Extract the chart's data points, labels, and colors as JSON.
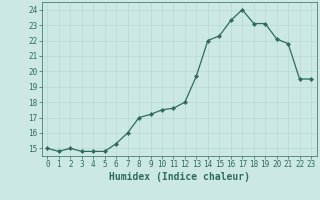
{
  "x": [
    0,
    1,
    2,
    3,
    4,
    5,
    6,
    7,
    8,
    9,
    10,
    11,
    12,
    13,
    14,
    15,
    16,
    17,
    18,
    19,
    20,
    21,
    22,
    23
  ],
  "y": [
    15.0,
    14.8,
    15.0,
    14.8,
    14.8,
    14.8,
    15.3,
    16.0,
    17.0,
    17.2,
    17.5,
    17.6,
    18.0,
    19.7,
    22.0,
    22.3,
    23.3,
    24.0,
    23.1,
    23.1,
    22.1,
    21.8,
    19.5,
    19.5
  ],
  "xlabel": "Humidex (Indice chaleur)",
  "xlim": [
    -0.5,
    23.5
  ],
  "ylim": [
    14.5,
    24.5
  ],
  "yticks": [
    15,
    16,
    17,
    18,
    19,
    20,
    21,
    22,
    23,
    24
  ],
  "xticks": [
    0,
    1,
    2,
    3,
    4,
    5,
    6,
    7,
    8,
    9,
    10,
    11,
    12,
    13,
    14,
    15,
    16,
    17,
    18,
    19,
    20,
    21,
    22,
    23
  ],
  "line_color": "#2e6b5e",
  "marker": "D",
  "marker_size": 2.0,
  "background_color": "#cce8e4",
  "grid_color": "#b8d8d4",
  "tick_label_fontsize": 5.5,
  "xlabel_fontsize": 7.0
}
